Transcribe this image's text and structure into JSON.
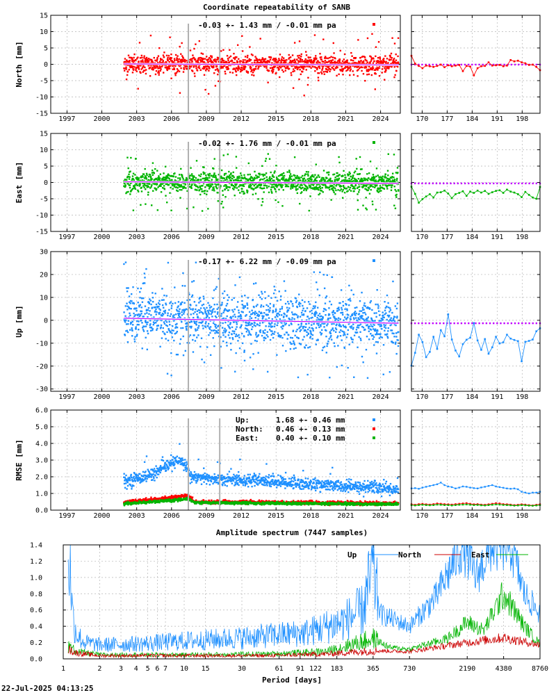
{
  "timestamp": "22-Jul-2025 04:13:25",
  "colors": {
    "north": "#ff0000",
    "east": "#00b400",
    "up": "#1e90ff",
    "trend": "#c000ff",
    "steps": "#b0b0b0"
  },
  "chart_data": [
    {
      "type": "scatter",
      "id": "north",
      "title": "Coordinate repeatability of SANB",
      "ylabel": "North [mm]",
      "stats": "-0.03 +- 1.43 mm / -0.01 mm pa",
      "xlim": [
        1995.6,
        2025.7
      ],
      "ylim": [
        -15,
        15
      ],
      "yticks": [
        -15,
        -10,
        -5,
        0,
        5,
        10,
        15
      ],
      "xticks": [
        1997,
        2000,
        2003,
        2006,
        2009,
        2012,
        2015,
        2018,
        2021,
        2024
      ],
      "data_range": [
        2001.9,
        2025.55
      ],
      "scatter_sd": 1.43,
      "outlier_range": 9.5,
      "trend": [
        [
          2001.9,
          0.1
        ],
        [
          2025.55,
          -0.2
        ]
      ],
      "steps": [
        2007.45,
        2010.15
      ],
      "recent": {
        "xlim": [
          167,
          203
        ],
        "xticks": [
          170,
          177,
          184,
          191,
          198
        ],
        "values": [
          2.6,
          0.2,
          -0.5,
          -1.2,
          -0.4,
          -0.6,
          -0.8,
          -0.5,
          -0.1,
          -0.9,
          -0.3,
          -0.6,
          -0.4,
          -0.2,
          -2.1,
          -0.5,
          -0.7,
          -3.4,
          -1.2,
          -0.6,
          -0.5,
          0.6,
          -0.4,
          -0.3,
          -0.2,
          -0.6,
          -0.4,
          1.3,
          0.9,
          1.1,
          0.6,
          0.3,
          -0.2,
          -0.1,
          -0.8,
          -1.8
        ],
        "trend": -0.1
      }
    },
    {
      "type": "scatter",
      "id": "east",
      "ylabel": "East [mm]",
      "stats": "-0.02 +- 1.76 mm / -0.01 mm pa",
      "xlim": [
        1995.6,
        2025.7
      ],
      "ylim": [
        -15,
        15
      ],
      "yticks": [
        -15,
        -10,
        -5,
        0,
        5,
        10,
        15
      ],
      "xticks": [
        1997,
        2000,
        2003,
        2006,
        2009,
        2012,
        2015,
        2018,
        2021,
        2024
      ],
      "data_range": [
        2001.9,
        2025.55
      ],
      "scatter_sd": 1.76,
      "outlier_range": 9.0,
      "trend": [
        [
          2001.9,
          0.2
        ],
        [
          2025.55,
          -0.3
        ]
      ],
      "steps": [
        2007.45,
        2010.15
      ],
      "recent": {
        "xlim": [
          167,
          203
        ],
        "xticks": [
          170,
          177,
          184,
          191,
          198
        ],
        "values": [
          -1.3,
          -3.5,
          -6.2,
          -5.1,
          -4.3,
          -3.6,
          -4.6,
          -3.1,
          -3.0,
          -2.5,
          -3.4,
          -4.8,
          -3.6,
          -3.2,
          -2.7,
          -4.1,
          -2.8,
          -3.2,
          -2.5,
          -3.1,
          -2.6,
          -3.5,
          -3.0,
          -2.6,
          -2.4,
          -3.2,
          -2.2,
          -2.8,
          -3.1,
          -3.6,
          -4.5,
          -2.9,
          -3.8,
          -4.6,
          -5.0,
          -1.4
        ],
        "trend": -0.3
      }
    },
    {
      "type": "scatter",
      "id": "up",
      "ylabel": "Up [mm]",
      "stats": "-0.17 +- 6.22 mm / -0.09 mm pa",
      "xlim": [
        1995.6,
        2025.7
      ],
      "ylim": [
        -31,
        30
      ],
      "yticks": [
        -30,
        -20,
        -10,
        0,
        10,
        20,
        30
      ],
      "xticks": [
        1997,
        2000,
        2003,
        2006,
        2009,
        2012,
        2015,
        2018,
        2021,
        2024
      ],
      "data_range": [
        2001.9,
        2025.55
      ],
      "scatter_sd": 6.22,
      "outlier_range": 25,
      "trend": [
        [
          2001.9,
          0.9
        ],
        [
          2025.55,
          -1.3
        ]
      ],
      "steps": [
        2007.45,
        2010.15
      ],
      "recent": {
        "xlim": [
          167,
          203
        ],
        "xticks": [
          170,
          177,
          184,
          191,
          198
        ],
        "values": [
          -19.8,
          -14.2,
          -6.3,
          -9.5,
          -16.1,
          -13.8,
          -7.2,
          -12.5,
          -4.3,
          -7.0,
          2.6,
          -8.4,
          -13.2,
          -15.8,
          -10.4,
          -8.5,
          -7.6,
          -1.2,
          -8.8,
          -12.9,
          -8.2,
          -14.6,
          -11.8,
          -7.2,
          -10.1,
          -9.6,
          -6.3,
          -8.0,
          -8.6,
          -9.1,
          -17.9,
          -9.4,
          -9.0,
          -8.4,
          -4.8,
          -3.5
        ],
        "trend": -1.3
      }
    },
    {
      "type": "scatter",
      "id": "rmse",
      "ylabel": "RMSE [mm]",
      "xlim": [
        1995.6,
        2025.7
      ],
      "ylim": [
        0,
        6
      ],
      "yticks": [
        0.0,
        1.0,
        2.0,
        3.0,
        4.0,
        5.0,
        6.0
      ],
      "xticks": [
        1997,
        2000,
        2003,
        2006,
        2009,
        2012,
        2015,
        2018,
        2021,
        2024
      ],
      "steps": [
        2007.45,
        2010.15
      ],
      "legend": [
        {
          "label": "Up:",
          "value": "1.68 +- 0.46 mm",
          "color": "#1e90ff"
        },
        {
          "label": "North:",
          "value": "0.46 +- 0.13 mm",
          "color": "#ff0000"
        },
        {
          "label": "East:",
          "value": "0.40 +- 0.10 mm",
          "color": "#00b400"
        }
      ],
      "up_profile": [
        [
          2001.9,
          1.7
        ],
        [
          2003.0,
          1.9
        ],
        [
          2004.5,
          2.2
        ],
        [
          2005.5,
          2.6
        ],
        [
          2006.3,
          2.9
        ],
        [
          2007.0,
          2.9
        ],
        [
          2007.4,
          2.5
        ],
        [
          2007.6,
          2.0
        ],
        [
          2009.0,
          1.9
        ],
        [
          2012.0,
          1.8
        ],
        [
          2015.0,
          1.7
        ],
        [
          2018.0,
          1.55
        ],
        [
          2021.0,
          1.4
        ],
        [
          2024.0,
          1.35
        ],
        [
          2025.55,
          1.2
        ]
      ],
      "north_profile": [
        [
          2001.9,
          0.45
        ],
        [
          2006.5,
          0.8
        ],
        [
          2007.4,
          0.9
        ],
        [
          2008.0,
          0.5
        ],
        [
          2025.55,
          0.4
        ]
      ],
      "east_profile": [
        [
          2001.9,
          0.38
        ],
        [
          2006.5,
          0.6
        ],
        [
          2007.4,
          0.7
        ],
        [
          2008.0,
          0.45
        ],
        [
          2025.55,
          0.35
        ]
      ],
      "recent": {
        "xlim": [
          167,
          203
        ],
        "xticks": [
          170,
          177,
          184,
          191,
          198
        ],
        "ylim": [
          0,
          6
        ],
        "up": [
          1.3,
          1.32,
          1.28,
          1.35,
          1.4,
          1.45,
          1.5,
          1.55,
          1.65,
          1.5,
          1.42,
          1.38,
          1.3,
          1.35,
          1.42,
          1.4,
          1.35,
          1.32,
          1.3,
          1.36,
          1.4,
          1.45,
          1.5,
          1.42,
          1.38,
          1.34,
          1.3,
          1.28,
          1.3,
          1.25,
          1.1,
          1.05,
          1.0,
          1.05,
          1.05,
          1.1
        ],
        "north": [
          0.35,
          0.32,
          0.36,
          0.38,
          0.35,
          0.33,
          0.36,
          0.4,
          0.38,
          0.36,
          0.35,
          0.33,
          0.36,
          0.38,
          0.4,
          0.42,
          0.38,
          0.35,
          0.36,
          0.33,
          0.32,
          0.35,
          0.38,
          0.42,
          0.4,
          0.36,
          0.35,
          0.33,
          0.3,
          0.32,
          0.35,
          0.33,
          0.3,
          0.28,
          0.32,
          0.35
        ],
        "east": [
          0.3,
          0.28,
          0.3,
          0.32,
          0.3,
          0.29,
          0.3,
          0.33,
          0.32,
          0.3,
          0.3,
          0.28,
          0.3,
          0.32,
          0.33,
          0.34,
          0.32,
          0.3,
          0.31,
          0.29,
          0.28,
          0.3,
          0.32,
          0.34,
          0.33,
          0.31,
          0.3,
          0.29,
          0.27,
          0.28,
          0.3,
          0.29,
          0.27,
          0.26,
          0.28,
          0.3
        ]
      }
    },
    {
      "type": "line",
      "id": "spectrum",
      "title": "Amplitude spectrum (7447 samples)",
      "xlabel": "Period [days]",
      "xscale": "log",
      "xlim": [
        1,
        8760
      ],
      "ylim": [
        0,
        1.4
      ],
      "yticks": [
        0.0,
        0.2,
        0.4,
        0.6,
        0.8,
        1.0,
        1.2,
        1.4
      ],
      "xticks": [
        1,
        2,
        3,
        4,
        5,
        6,
        7,
        10,
        15,
        30,
        61,
        91,
        122,
        183,
        365,
        730,
        2190,
        4380,
        8760
      ],
      "legend_position": "top-right",
      "series": [
        {
          "name": "Up",
          "color": "#1e90ff",
          "anchors": [
            [
              1.1,
              1.4
            ],
            [
              1.15,
              1.1
            ],
            [
              1.2,
              0.5
            ],
            [
              1.3,
              0.3
            ],
            [
              1.5,
              0.2
            ],
            [
              2,
              0.17
            ],
            [
              5,
              0.19
            ],
            [
              10,
              0.22
            ],
            [
              30,
              0.26
            ],
            [
              100,
              0.32
            ],
            [
              200,
              0.45
            ],
            [
              300,
              0.6
            ],
            [
              365,
              1.1
            ],
            [
              420,
              0.55
            ],
            [
              730,
              0.4
            ],
            [
              1200,
              0.75
            ],
            [
              2000,
              1.4
            ],
            [
              2600,
              1.0
            ],
            [
              3500,
              1.4
            ],
            [
              5000,
              1.4
            ],
            [
              6500,
              0.8
            ],
            [
              8760,
              0.55
            ]
          ]
        },
        {
          "name": "North",
          "color": "#cc0000",
          "anchors": [
            [
              1.1,
              0.12
            ],
            [
              1.3,
              0.07
            ],
            [
              2,
              0.04
            ],
            [
              10,
              0.04
            ],
            [
              50,
              0.04
            ],
            [
              150,
              0.06
            ],
            [
              365,
              0.1
            ],
            [
              730,
              0.09
            ],
            [
              2190,
              0.2
            ],
            [
              4380,
              0.26
            ],
            [
              8760,
              0.17
            ]
          ]
        },
        {
          "name": "East",
          "color": "#00b400",
          "anchors": [
            [
              1.1,
              0.15
            ],
            [
              1.3,
              0.09
            ],
            [
              2,
              0.05
            ],
            [
              10,
              0.05
            ],
            [
              50,
              0.06
            ],
            [
              150,
              0.09
            ],
            [
              365,
              0.25
            ],
            [
              500,
              0.14
            ],
            [
              730,
              0.12
            ],
            [
              1500,
              0.25
            ],
            [
              2190,
              0.45
            ],
            [
              3000,
              0.35
            ],
            [
              4380,
              0.8
            ],
            [
              6500,
              0.4
            ],
            [
              8760,
              0.18
            ]
          ]
        }
      ]
    }
  ]
}
